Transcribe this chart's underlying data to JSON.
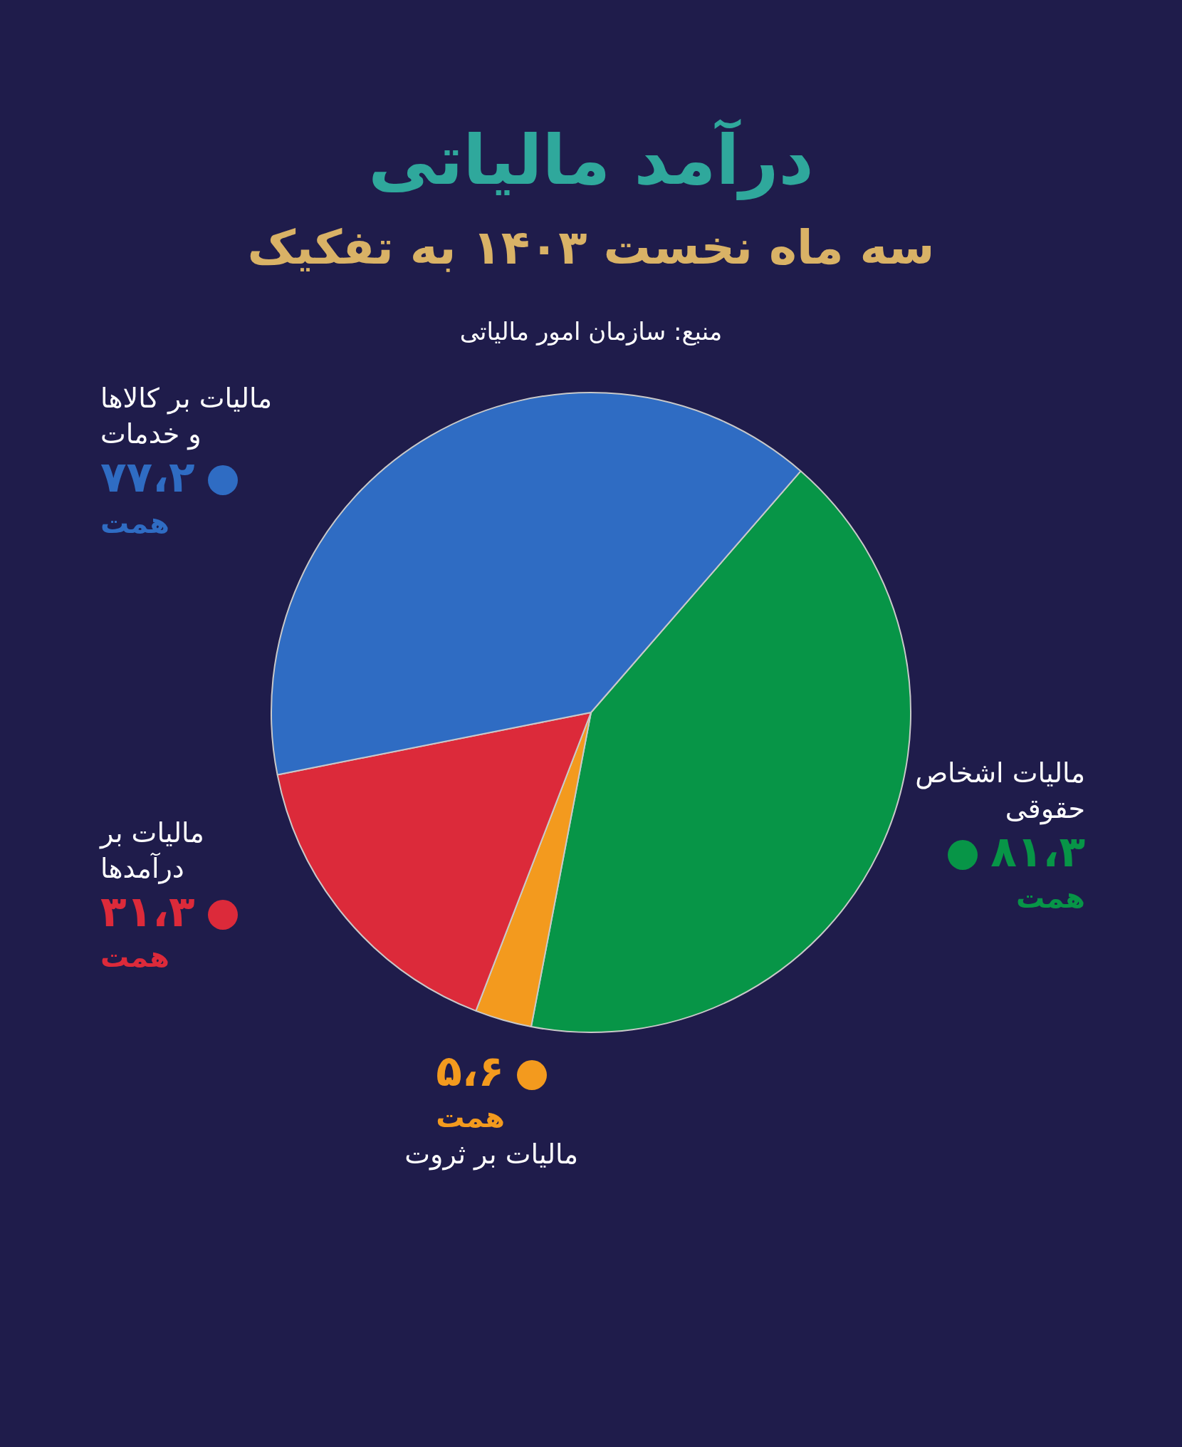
{
  "chart_data": {
    "type": "pie",
    "title": "درآمد مالیاتی",
    "subtitle": "سه ماه نخست ۱۴۰۳ به تفکیک",
    "annotations": [
      "منبع: سازمان امور مالیاتی"
    ],
    "categories": [
      "مالیات اشخاص حقوقی",
      "مالیات بر ثروت",
      "مالیات بر درآمدها",
      "مالیات بر کالاها و خدمات"
    ],
    "values": [
      81.3,
      5.6,
      31.3,
      77.2
    ],
    "colors": [
      "#079547",
      "#f39a1e",
      "#dc2a3a",
      "#2f6cc3"
    ],
    "value_labels": [
      "۸۱،۳ همت",
      "۵،۶ همت",
      "۳۱،۳ همت",
      "۷۷،۲ همت"
    ]
  }
}
